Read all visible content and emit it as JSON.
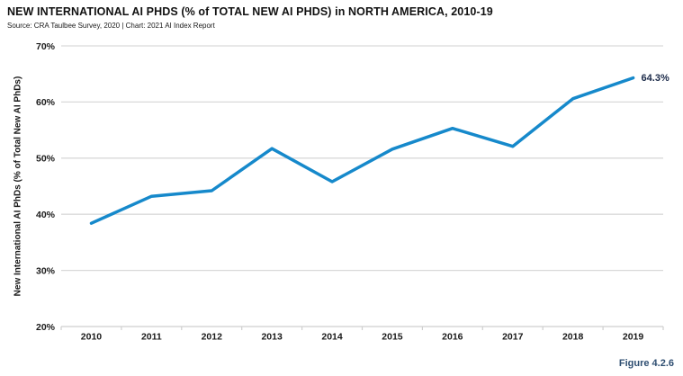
{
  "header": {
    "title": "NEW INTERNATIONAL AI PHDS (% of TOTAL NEW AI PHDS) in NORTH AMERICA, 2010-19",
    "source": "Source: CRA Taulbee Survey, 2020 | Chart: 2021 AI Index Report"
  },
  "chart_data": {
    "type": "line",
    "title": "NEW INTERNATIONAL AI PHDS (% of TOTAL NEW AI PHDS) in NORTH AMERICA, 2010-19",
    "categories": [
      "2010",
      "2011",
      "2012",
      "2013",
      "2014",
      "2015",
      "2016",
      "2017",
      "2018",
      "2019"
    ],
    "series": [
      {
        "name": "New International AI PhDs (% of Total New AI PhDs)",
        "values": [
          38.4,
          43.2,
          44.2,
          51.7,
          45.8,
          51.6,
          55.3,
          52.1,
          60.6,
          64.3
        ]
      }
    ],
    "xlabel": "",
    "ylabel": "New International AI PhDs (% of Total New AI PhDs)",
    "ylim": [
      20,
      70
    ],
    "yticks": [
      20,
      30,
      40,
      50,
      60,
      70
    ],
    "ytick_suffix": "%",
    "grid": "horizontal",
    "legend_position": "none",
    "end_label": "64.3%"
  },
  "footer": {
    "figure_label": "Figure 4.2.6"
  },
  "colors": {
    "line": "#1689cb",
    "grid": "#d9d9d9",
    "axis": "#cfcfcf",
    "tick_text": "#1a1a1a",
    "end_label": "#1b2a49",
    "figure_label": "#2e4e71"
  }
}
